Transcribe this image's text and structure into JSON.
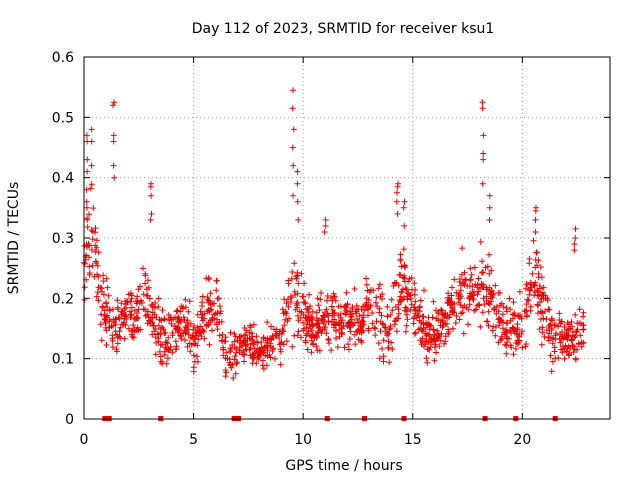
{
  "chart_data": {
    "type": "scatter",
    "title": "Day 112 of 2023, SRMTID for receiver ksu1",
    "xlabel": "GPS time / hours",
    "ylabel": "SRMTID / TECUs",
    "xlim": [
      0,
      24
    ],
    "ylim": [
      0,
      0.6
    ],
    "x_ticks": [
      0,
      5,
      10,
      15,
      20
    ],
    "x_tick_labels": [
      "0",
      "5",
      "10",
      "15",
      "20"
    ],
    "y_ticks": [
      0,
      0.1,
      0.2,
      0.3,
      0.4,
      0.5,
      0.6
    ],
    "y_tick_labels": [
      "0",
      "0.1",
      "0.2",
      "0.3",
      "0.4",
      "0.5",
      "0.6"
    ],
    "grid": true,
    "marker": "plus",
    "color": "#ee0000",
    "data_range_hours": [
      0,
      22.8
    ],
    "zero_value_times": [
      0.95,
      1.05,
      1.15,
      3.5,
      6.85,
      7.05,
      11.1,
      12.8,
      14.6,
      18.3,
      19.7,
      21.5
    ],
    "envelope": [
      [
        0.0,
        0.26,
        0.07
      ],
      [
        0.3,
        0.32,
        0.06
      ],
      [
        0.6,
        0.26,
        0.05
      ],
      [
        0.9,
        0.17,
        0.05
      ],
      [
        1.3,
        0.16,
        0.05
      ],
      [
        2.0,
        0.17,
        0.04
      ],
      [
        2.5,
        0.18,
        0.04
      ],
      [
        3.0,
        0.2,
        0.05
      ],
      [
        3.5,
        0.13,
        0.04
      ],
      [
        4.0,
        0.14,
        0.04
      ],
      [
        4.5,
        0.16,
        0.04
      ],
      [
        5.0,
        0.13,
        0.04
      ],
      [
        5.5,
        0.17,
        0.04
      ],
      [
        6.0,
        0.19,
        0.05
      ],
      [
        6.5,
        0.1,
        0.04
      ],
      [
        7.0,
        0.12,
        0.03
      ],
      [
        7.5,
        0.13,
        0.03
      ],
      [
        8.0,
        0.11,
        0.03
      ],
      [
        8.5,
        0.12,
        0.03
      ],
      [
        9.0,
        0.13,
        0.04
      ],
      [
        9.6,
        0.22,
        0.07
      ],
      [
        10.0,
        0.17,
        0.05
      ],
      [
        10.5,
        0.15,
        0.04
      ],
      [
        11.0,
        0.18,
        0.05
      ],
      [
        11.5,
        0.16,
        0.04
      ],
      [
        12.0,
        0.17,
        0.04
      ],
      [
        12.5,
        0.15,
        0.04
      ],
      [
        13.0,
        0.19,
        0.05
      ],
      [
        13.5,
        0.17,
        0.05
      ],
      [
        14.0,
        0.15,
        0.05
      ],
      [
        14.3,
        0.22,
        0.07
      ],
      [
        14.8,
        0.2,
        0.05
      ],
      [
        15.3,
        0.16,
        0.05
      ],
      [
        15.8,
        0.14,
        0.04
      ],
      [
        16.3,
        0.15,
        0.04
      ],
      [
        17.0,
        0.2,
        0.05
      ],
      [
        17.5,
        0.21,
        0.05
      ],
      [
        18.0,
        0.22,
        0.05
      ],
      [
        18.5,
        0.2,
        0.05
      ],
      [
        19.0,
        0.16,
        0.04
      ],
      [
        19.5,
        0.15,
        0.04
      ],
      [
        20.0,
        0.17,
        0.05
      ],
      [
        20.5,
        0.24,
        0.06
      ],
      [
        21.0,
        0.17,
        0.05
      ],
      [
        21.5,
        0.14,
        0.04
      ],
      [
        22.0,
        0.13,
        0.03
      ],
      [
        22.5,
        0.14,
        0.04
      ],
      [
        22.8,
        0.15,
        0.03
      ]
    ],
    "bursts": [
      {
        "x": 0.15,
        "y": [
          0.47,
          0.46,
          0.43,
          0.41,
          0.38,
          0.36,
          0.35,
          0.33
        ]
      },
      {
        "x": 0.35,
        "y": [
          0.48,
          0.46,
          0.42
        ]
      },
      {
        "x": 1.35,
        "y": [
          0.525,
          0.52,
          0.47,
          0.46,
          0.42,
          0.4
        ]
      },
      {
        "x": 3.05,
        "y": [
          0.39,
          0.385,
          0.37,
          0.34,
          0.33
        ]
      },
      {
        "x": 9.55,
        "y": [
          0.545,
          0.515,
          0.48,
          0.45,
          0.42,
          0.37
        ]
      },
      {
        "x": 9.75,
        "y": [
          0.41,
          0.39,
          0.36,
          0.33
        ]
      },
      {
        "x": 11.0,
        "y": [
          0.33,
          0.32,
          0.31
        ]
      },
      {
        "x": 14.3,
        "y": [
          0.39,
          0.385,
          0.375,
          0.36,
          0.34
        ]
      },
      {
        "x": 14.6,
        "y": [
          0.36,
          0.35,
          0.32
        ]
      },
      {
        "x": 18.2,
        "y": [
          0.525,
          0.515,
          0.47,
          0.44,
          0.43,
          0.39
        ]
      },
      {
        "x": 18.5,
        "y": [
          0.37,
          0.35,
          0.33
        ]
      },
      {
        "x": 20.6,
        "y": [
          0.35,
          0.345,
          0.33,
          0.31
        ]
      },
      {
        "x": 22.4,
        "y": [
          0.315,
          0.3,
          0.29,
          0.28
        ]
      }
    ]
  }
}
